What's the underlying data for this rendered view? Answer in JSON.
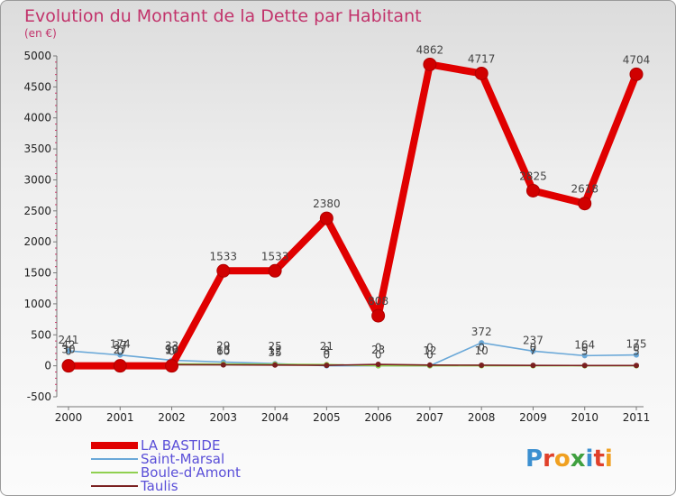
{
  "chart_data": {
    "type": "line",
    "title": "Evolution du Montant de la Dette par Habitant",
    "unit_label": "(en €)",
    "xlabel": "",
    "ylabel": "",
    "x": [
      "2000",
      "2001",
      "2002",
      "2003",
      "2004",
      "2005",
      "2006",
      "2007",
      "2008",
      "2009",
      "2010",
      "2011"
    ],
    "ylim": [
      -500,
      5000
    ],
    "yticks": [
      -500,
      0,
      500,
      1000,
      1500,
      2000,
      2500,
      3000,
      3500,
      4000,
      4500,
      5000
    ],
    "grid": false,
    "legend_position": "bottom-left",
    "series": [
      {
        "name": "LA BASTIDE",
        "color": "#e00000",
        "values": [
          0,
          0,
          0,
          1533,
          1533,
          2380,
          808,
          4862,
          4717,
          2825,
          2618,
          4704
        ],
        "labels": [
          "0",
          "0",
          "0",
          "1533",
          "1533",
          "2380",
          "808",
          "4862",
          "4717",
          "2825",
          "2618",
          "4704"
        ]
      },
      {
        "name": "Saint-Marsal",
        "color": "#6aa8d8",
        "values": [
          241,
          174,
          90,
          60,
          35,
          0,
          0,
          0,
          372,
          237,
          164,
          175
        ],
        "labels": [
          "241",
          "174",
          "90",
          "60",
          "35",
          "0",
          "0",
          "0",
          "372",
          "237",
          "164",
          "175"
        ]
      },
      {
        "name": "Boule-d'Amont",
        "color": "#90d050",
        "values": [
          42,
          37,
          33,
          29,
          25,
          21,
          0,
          0,
          0,
          0,
          0,
          0
        ],
        "labels": [
          "42",
          "37",
          "33",
          "29",
          "25",
          "21",
          "0",
          "0",
          "0",
          "0",
          "0",
          "0"
        ]
      },
      {
        "name": "Taulis",
        "color": "#7a2020",
        "values": [
          30,
          27,
          17,
          15,
          12,
          8,
          23,
          12,
          10,
          7,
          5,
          5
        ],
        "labels": [
          "30",
          "27",
          "17",
          "15",
          "12",
          "8",
          "23",
          "12",
          "10",
          "7",
          "5",
          "5"
        ]
      }
    ]
  },
  "watermark": "Proxiti"
}
